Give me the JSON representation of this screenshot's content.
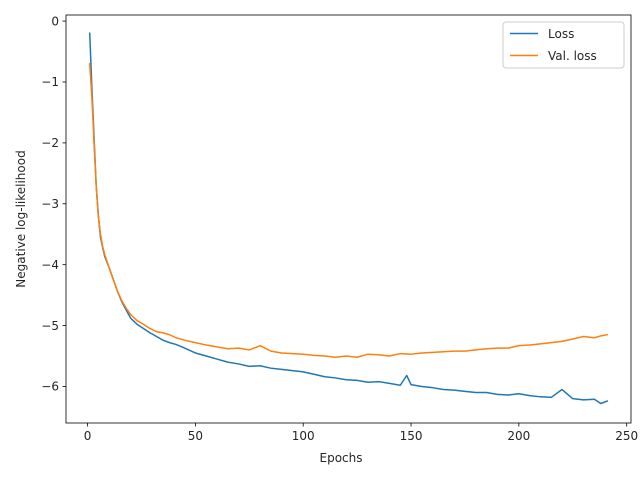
{
  "chart_data": {
    "type": "line",
    "title": "",
    "xlabel": "Epochs",
    "ylabel": "Negative log-likelihood",
    "xlim": [
      -10,
      252
    ],
    "ylim": [
      -6.6,
      0.1
    ],
    "xticks": [
      0,
      50,
      100,
      150,
      200,
      250
    ],
    "yticks": [
      0,
      -1,
      -2,
      -3,
      -4,
      -5,
      -6
    ],
    "xtick_labels": [
      "0",
      "50",
      "100",
      "150",
      "200",
      "250"
    ],
    "ytick_labels": [
      "0",
      "−1",
      "−2",
      "−3",
      "−4",
      "−5",
      "−6"
    ],
    "grid": false,
    "legend": {
      "placement": "top-right"
    },
    "series": [
      {
        "name": "Loss",
        "color": "#1f77b4",
        "x": [
          1,
          2,
          3,
          4,
          5,
          6,
          7,
          8,
          10,
          12,
          14,
          16,
          18,
          20,
          23,
          26,
          29,
          32,
          35,
          38,
          41,
          45,
          50,
          55,
          60,
          65,
          70,
          75,
          80,
          85,
          90,
          95,
          100,
          105,
          110,
          115,
          120,
          125,
          130,
          135,
          140,
          145,
          148,
          150,
          155,
          160,
          165,
          170,
          175,
          180,
          185,
          190,
          195,
          200,
          205,
          210,
          215,
          220,
          225,
          230,
          235,
          238,
          241
        ],
        "y": [
          -0.2,
          -1.1,
          -1.9,
          -2.7,
          -3.2,
          -3.55,
          -3.72,
          -3.87,
          -4.05,
          -4.25,
          -4.45,
          -4.62,
          -4.75,
          -4.88,
          -4.98,
          -5.05,
          -5.12,
          -5.18,
          -5.24,
          -5.28,
          -5.31,
          -5.37,
          -5.45,
          -5.5,
          -5.55,
          -5.6,
          -5.63,
          -5.67,
          -5.66,
          -5.7,
          -5.72,
          -5.74,
          -5.76,
          -5.8,
          -5.84,
          -5.86,
          -5.89,
          -5.9,
          -5.93,
          -5.92,
          -5.95,
          -5.98,
          -5.82,
          -5.97,
          -6.0,
          -6.02,
          -6.05,
          -6.06,
          -6.08,
          -6.1,
          -6.1,
          -6.13,
          -6.14,
          -6.12,
          -6.15,
          -6.17,
          -6.18,
          -6.05,
          -6.2,
          -6.22,
          -6.21,
          -6.28,
          -6.24
        ]
      },
      {
        "name": "Val. loss",
        "color": "#ff7f0e",
        "x": [
          1,
          2,
          3,
          4,
          5,
          6,
          7,
          8,
          10,
          12,
          14,
          16,
          18,
          20,
          23,
          26,
          29,
          32,
          35,
          38,
          41,
          45,
          50,
          55,
          60,
          65,
          70,
          75,
          80,
          85,
          90,
          95,
          100,
          105,
          110,
          115,
          120,
          125,
          130,
          135,
          140,
          145,
          150,
          155,
          160,
          165,
          170,
          175,
          180,
          185,
          190,
          195,
          200,
          205,
          210,
          215,
          220,
          225,
          230,
          235,
          238,
          241
        ],
        "y": [
          -0.7,
          -1.25,
          -2.0,
          -2.7,
          -3.2,
          -3.5,
          -3.7,
          -3.84,
          -4.05,
          -4.25,
          -4.45,
          -4.6,
          -4.72,
          -4.82,
          -4.92,
          -4.98,
          -5.05,
          -5.1,
          -5.12,
          -5.15,
          -5.2,
          -5.24,
          -5.28,
          -5.32,
          -5.35,
          -5.38,
          -5.37,
          -5.4,
          -5.33,
          -5.42,
          -5.45,
          -5.46,
          -5.47,
          -5.49,
          -5.5,
          -5.52,
          -5.5,
          -5.52,
          -5.47,
          -5.48,
          -5.5,
          -5.46,
          -5.47,
          -5.45,
          -5.44,
          -5.43,
          -5.42,
          -5.42,
          -5.4,
          -5.38,
          -5.37,
          -5.37,
          -5.33,
          -5.32,
          -5.3,
          -5.28,
          -5.26,
          -5.22,
          -5.18,
          -5.2,
          -5.17,
          -5.15
        ]
      }
    ]
  }
}
